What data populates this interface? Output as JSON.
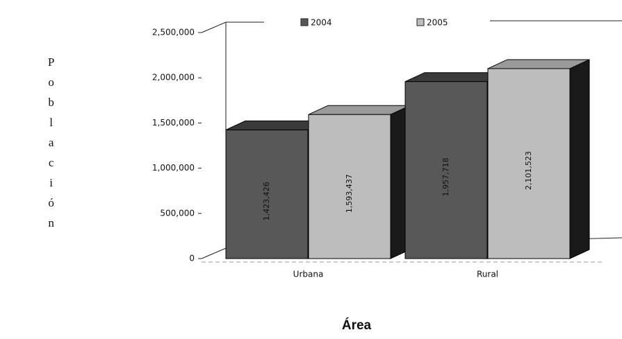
{
  "chart_data": {
    "type": "bar3d",
    "y_label": "Población",
    "x_label": "Área",
    "categories": [
      "Urbana",
      "Rural"
    ],
    "series": [
      {
        "name": "2004",
        "color": "#585858",
        "values": [
          1423426,
          1957718
        ],
        "value_labels": [
          "1,423,426",
          "1,957,718"
        ]
      },
      {
        "name": "2005",
        "color": "#bdbdbd",
        "values": [
          1593437,
          2101523
        ],
        "value_labels": [
          "1,593,437",
          "2,101,523"
        ]
      }
    ],
    "ylim": [
      0,
      2500000
    ],
    "yticks": [
      0,
      {
        "value": 500000,
        "label": "500,000"
      },
      {
        "value": 1000000,
        "label": "1,000,000"
      },
      {
        "value": 1500000,
        "label": "1,500,000"
      },
      {
        "value": 2000000,
        "label": "2,000,000"
      },
      {
        "value": 2500000,
        "label": "2,500,000"
      }
    ],
    "legend": "top"
  }
}
